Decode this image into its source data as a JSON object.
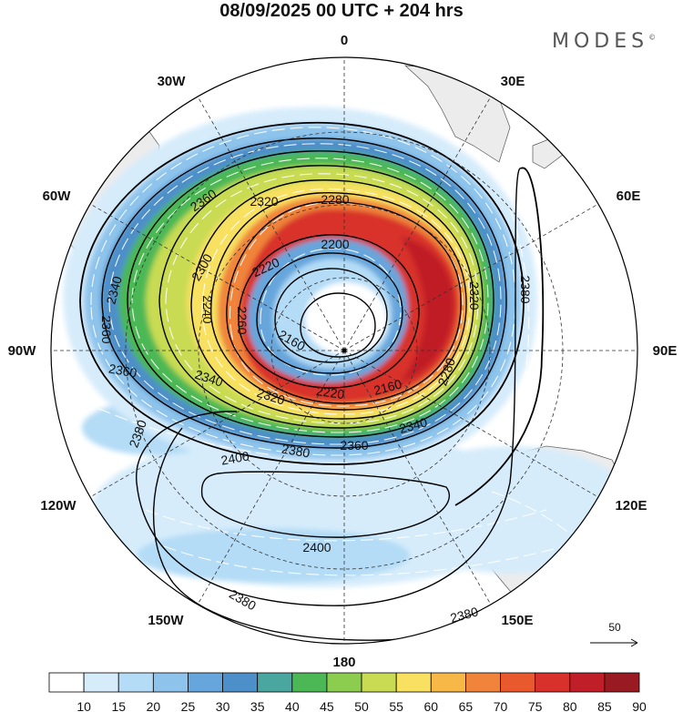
{
  "title": "08/09/2025  00 UTC  + 204 hrs",
  "logo": "MODES",
  "logo_mark": "©",
  "longitude_labels": {
    "lon_0": "0",
    "lon_30e": "30E",
    "lon_60e": "60E",
    "lon_90e": "90E",
    "lon_120e": "120E",
    "lon_150e": "150E",
    "lon_180": "180",
    "lon_150w": "150W",
    "lon_120w": "120W",
    "lon_90w": "90W",
    "lon_60w": "60W",
    "lon_30w": "30W"
  },
  "contour_labels": {
    "c2280": "2280",
    "c2320a": "2320",
    "c2360a": "2360",
    "c2300": "2300",
    "c2340a": "2340",
    "c2360w": "2360",
    "c2200a": "2200",
    "c2220a": "2220",
    "c2240": "2240",
    "c2260": "2260",
    "c2160a": "2160",
    "c2340b": "2340",
    "c2320b": "2320",
    "c2220b": "2220",
    "c2160b": "2160",
    "c2340c": "2340",
    "c2280e": "2280",
    "c2320e": "2320",
    "c2380e": "2380",
    "c2360s": "2360",
    "c2380s": "2380",
    "c2380w": "2380",
    "c2400a": "2400",
    "c2400b": "2400",
    "c2380sw": "2380",
    "c2380se": "2380",
    "c2360x": "2360"
  },
  "wind_speed_scale": {
    "ticks": [
      "10",
      "15",
      "20",
      "25",
      "30",
      "35",
      "40",
      "45",
      "50",
      "55",
      "60",
      "65",
      "70",
      "75",
      "80",
      "85",
      "90"
    ],
    "colors": [
      "#ffffff",
      "#d6ecfb",
      "#b4dcf6",
      "#8ec4ec",
      "#66a6dc",
      "#4d8fc9",
      "#4aa7a0",
      "#4cb855",
      "#8ccc4f",
      "#c8db52",
      "#f8e060",
      "#f8b848",
      "#f0843a",
      "#e85a2e",
      "#d8302a",
      "#c01e28",
      "#9a1a22"
    ]
  },
  "reference_vector_label": "50",
  "colors": {
    "land": "#ececec",
    "contour": "#000000",
    "grid": "#333333"
  }
}
